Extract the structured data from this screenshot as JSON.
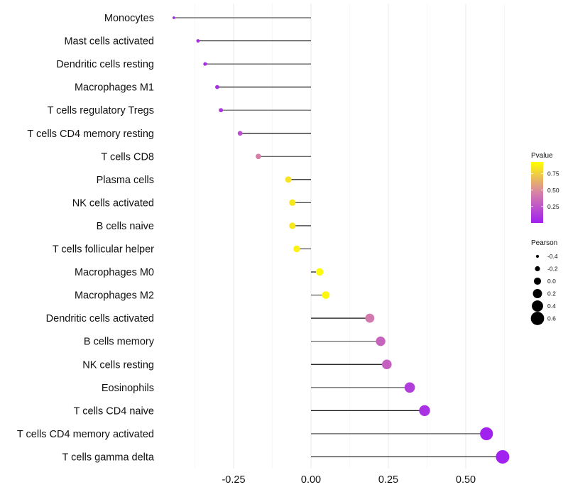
{
  "chart_data": {
    "type": "lollipop",
    "title": "",
    "xlabel": "",
    "ylabel": "",
    "xlim": [
      -0.47,
      0.65
    ],
    "x_ticks": [
      -0.25,
      0.0,
      0.25,
      0.5
    ],
    "x_tick_labels": [
      "-0.25",
      "0.00",
      "0.25",
      "0.50"
    ],
    "grid": true,
    "categories": [
      "Monocytes",
      "Mast cells activated",
      "Dendritic cells resting",
      "Macrophages M1",
      "T cells regulatory  Tregs",
      "T cells CD4 memory resting",
      "T cells CD8",
      "Plasma cells",
      "NK cells activated",
      "B cells naive",
      "T cells follicular helper",
      "Macrophages M0",
      "Macrophages M2",
      "Dendritic cells activated",
      "B cells memory",
      "NK cells resting",
      "Eosinophils",
      "T cells CD4 naive",
      "T cells CD4 memory activated",
      "T cells gamma delta"
    ],
    "values": [
      -0.443,
      -0.365,
      -0.342,
      -0.303,
      -0.291,
      -0.229,
      -0.17,
      -0.073,
      -0.06,
      -0.06,
      -0.046,
      0.028,
      0.048,
      0.19,
      0.225,
      0.245,
      0.319,
      0.367,
      0.567,
      0.619
    ],
    "pvalues": [
      0.03,
      0.05,
      0.05,
      0.08,
      0.1,
      0.22,
      0.45,
      0.82,
      0.84,
      0.84,
      0.88,
      0.91,
      0.9,
      0.42,
      0.32,
      0.3,
      0.14,
      0.08,
      0.01,
      0.005
    ],
    "color_legend": {
      "title": "Pvalue",
      "ticks": [
        0.25,
        0.5,
        0.75
      ],
      "tick_labels": [
        "0.25",
        "0.50",
        "0.75"
      ],
      "range": [
        0.0,
        0.93
      ],
      "low_color": "#A020F0",
      "mid_color": "#D783A6",
      "high_color": "#FFFF00"
    },
    "size_legend": {
      "title": "Pearson",
      "values": [
        -0.4,
        -0.2,
        0.0,
        0.2,
        0.4,
        0.6
      ],
      "labels": [
        "-0.4",
        "-0.2",
        "0.0",
        "0.2",
        "0.4",
        "0.6"
      ]
    },
    "legend_position": "right"
  }
}
